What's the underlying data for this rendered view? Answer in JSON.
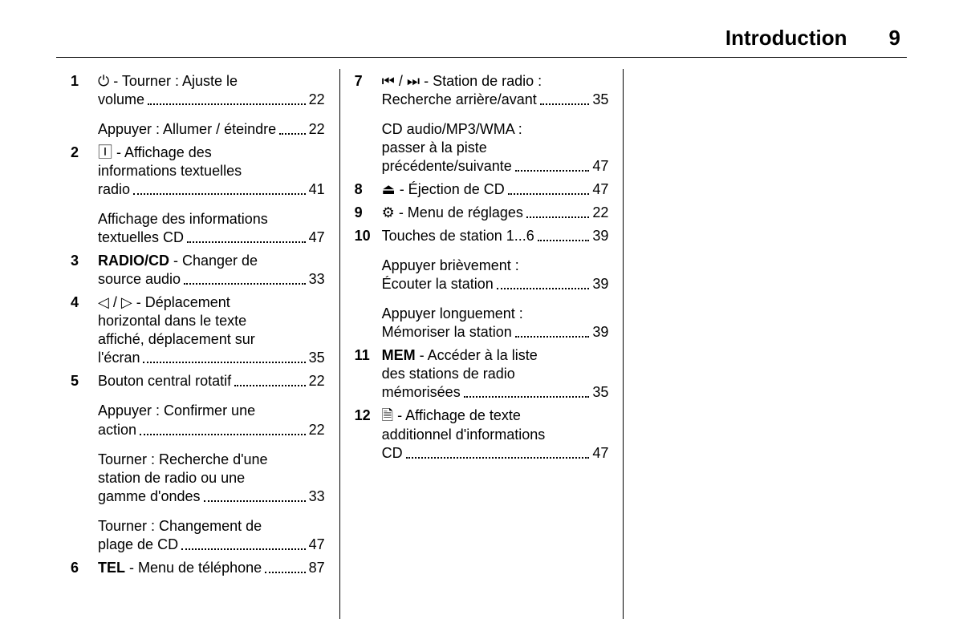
{
  "header": {
    "title": "Introduction",
    "page": "9"
  },
  "columns": [
    [
      {
        "num": "1",
        "subs": [
          {
            "lines": [
              "<span class='sym'>⏻</span> - Tourner : Ajuste le",
              "volume"
            ],
            "page": "22"
          },
          {
            "lines": [
              "Appuyer : Allumer / éteindre"
            ],
            "page": "22",
            "tight_leader": true
          }
        ]
      },
      {
        "num": "2",
        "subs": [
          {
            "lines": [
              "<span class='sym'>🄸</span> - Affichage des",
              "informations textuelles",
              "radio"
            ],
            "page": "41"
          },
          {
            "lines": [
              "Affichage des informations",
              "textuelles CD"
            ],
            "page": "47"
          }
        ]
      },
      {
        "num": "3",
        "subs": [
          {
            "lines": [
              "<span class='b'>RADIO/CD</span> - Changer de",
              "source audio"
            ],
            "page": "33"
          }
        ]
      },
      {
        "num": "4",
        "subs": [
          {
            "lines": [
              "<span class='sym'>◁</span> / <span class='sym'>▷</span> - Déplacement",
              "horizontal dans le texte",
              "affiché, déplacement sur",
              "l'écran"
            ],
            "page": "35"
          }
        ]
      },
      {
        "num": "5",
        "subs": [
          {
            "lines": [
              "Bouton central rotatif"
            ],
            "page": "22"
          },
          {
            "lines": [
              "Appuyer : Confirmer une",
              "action"
            ],
            "page": "22"
          },
          {
            "lines": [
              "Tourner : Recherche d'une",
              "station de radio ou une",
              "gamme d'ondes"
            ],
            "page": "33"
          },
          {
            "lines": [
              "Tourner : Changement de",
              "plage de CD"
            ],
            "page": "47"
          }
        ]
      },
      {
        "num": "6",
        "subs": [
          {
            "lines": [
              "<span class='b'>TEL</span> - Menu de téléphone"
            ],
            "page": "87"
          }
        ]
      }
    ],
    [
      {
        "num": "7",
        "subs": [
          {
            "lines": [
              "<span class='sym'>⏮</span> / <span class='sym'>⏭</span> - Station de radio :",
              "Recherche arrière/avant"
            ],
            "page": "35"
          },
          {
            "lines": [
              "CD audio/MP3/WMA :",
              "passer à la piste",
              "précédente/suivante"
            ],
            "page": "47"
          }
        ]
      },
      {
        "num": "8",
        "subs": [
          {
            "lines": [
              "<span class='sym'>⏏</span> - Éjection de CD"
            ],
            "page": "47"
          }
        ]
      },
      {
        "num": "9",
        "subs": [
          {
            "lines": [
              "<span class='sym'>⚙</span> - Menu de réglages"
            ],
            "page": "22"
          }
        ]
      },
      {
        "num": "10",
        "subs": [
          {
            "lines": [
              "Touches de station 1...6"
            ],
            "page": "39"
          },
          {
            "lines": [
              "Appuyer brièvement :",
              "Écouter la station"
            ],
            "page": "39"
          },
          {
            "lines": [
              "Appuyer longuement :",
              "Mémoriser la station"
            ],
            "page": "39"
          }
        ]
      },
      {
        "num": "11",
        "subs": [
          {
            "lines": [
              "<span class='b'>MEM</span> - Accéder à la liste",
              "des stations de radio",
              "mémorisées"
            ],
            "page": "35"
          }
        ]
      },
      {
        "num": "12",
        "subs": [
          {
            "lines": [
              "<span class='sym'>🗎</span> - Affichage de texte",
              "additionnel d'informations",
              "CD"
            ],
            "page": "47"
          }
        ]
      }
    ],
    []
  ]
}
